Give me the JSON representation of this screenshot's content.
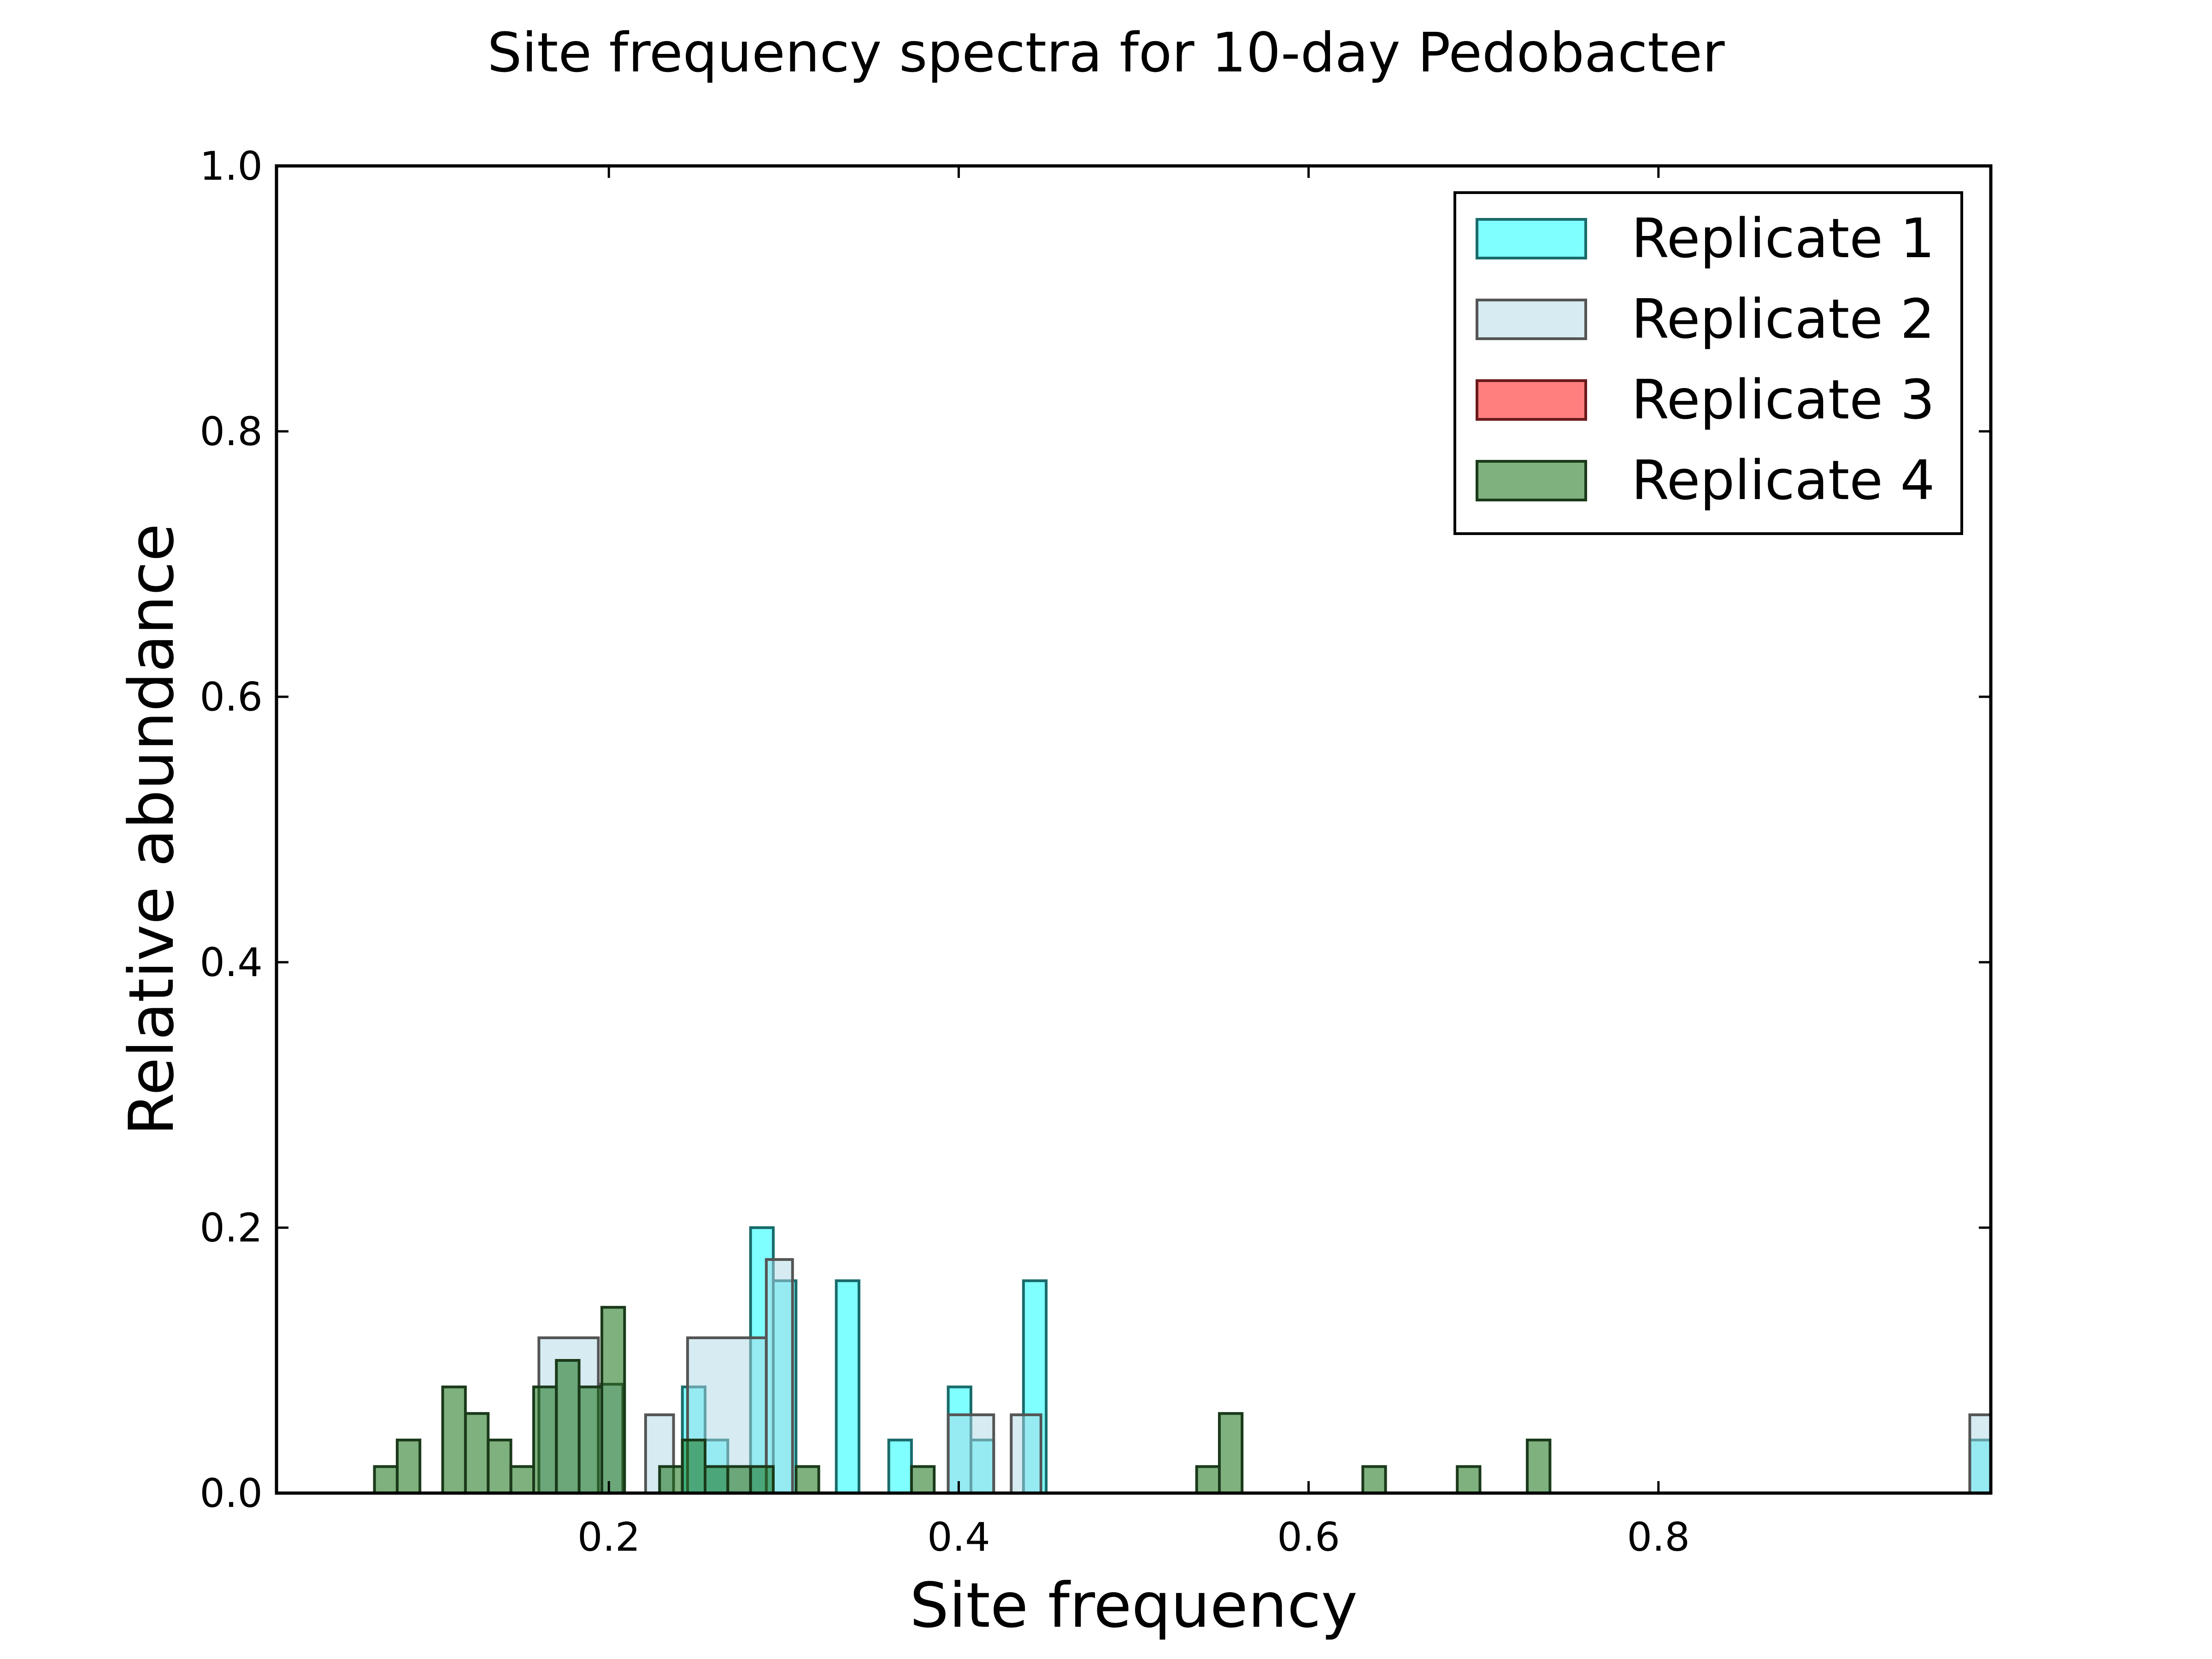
{
  "chart_data": {
    "type": "bar",
    "subtype": "histogram-step-overlay",
    "title": "Site frequency spectra for 10-day Pedobacter",
    "xlabel": "Site frequency",
    "ylabel": "Relative abundance",
    "xlim": [
      0.01,
      0.99
    ],
    "ylim": [
      0.0,
      1.0
    ],
    "xticks": [
      0.2,
      0.4,
      0.6,
      0.8
    ],
    "xtick_labels": [
      "0.2",
      "0.4",
      "0.6",
      "0.8"
    ],
    "yticks": [
      0.0,
      0.2,
      0.4,
      0.6,
      0.8,
      1.0
    ],
    "ytick_labels": [
      "0.0",
      "0.2",
      "0.4",
      "0.6",
      "0.8",
      "1.0"
    ],
    "grid": false,
    "legend_position": "top-right",
    "bin_width": 0.013,
    "series": [
      {
        "name": "Replicate 1",
        "color": "#00ffff",
        "edge_color": "#1a6b6b",
        "opacity": 0.5,
        "bins": [
          {
            "x0": 0.242,
            "x1": 0.255,
            "y": 0.08
          },
          {
            "x0": 0.255,
            "x1": 0.268,
            "y": 0.04
          },
          {
            "x0": 0.281,
            "x1": 0.294,
            "y": 0.2
          },
          {
            "x0": 0.294,
            "x1": 0.307,
            "y": 0.16
          },
          {
            "x0": 0.33,
            "x1": 0.343,
            "y": 0.16
          },
          {
            "x0": 0.36,
            "x1": 0.373,
            "y": 0.04
          },
          {
            "x0": 0.394,
            "x1": 0.407,
            "y": 0.08
          },
          {
            "x0": 0.407,
            "x1": 0.42,
            "y": 0.04
          },
          {
            "x0": 0.437,
            "x1": 0.45,
            "y": 0.16
          },
          {
            "x0": 0.978,
            "x1": 0.99,
            "y": 0.04
          }
        ]
      },
      {
        "name": "Replicate 2",
        "color": "#add8e6",
        "edge_color": "#555555",
        "opacity": 0.5,
        "bins": [
          {
            "x0": 0.16,
            "x1": 0.194,
            "y": 0.117
          },
          {
            "x0": 0.194,
            "x1": 0.208,
            "y": 0.082
          },
          {
            "x0": 0.221,
            "x1": 0.237,
            "y": 0.059
          },
          {
            "x0": 0.245,
            "x1": 0.29,
            "y": 0.117
          },
          {
            "x0": 0.29,
            "x1": 0.305,
            "y": 0.176
          },
          {
            "x0": 0.394,
            "x1": 0.42,
            "y": 0.059
          },
          {
            "x0": 0.43,
            "x1": 0.447,
            "y": 0.059
          },
          {
            "x0": 0.978,
            "x1": 0.99,
            "y": 0.059
          }
        ]
      },
      {
        "name": "Replicate 3",
        "color": "#ff0000",
        "edge_color": "#6b1a1a",
        "opacity": 0.5,
        "bins": []
      },
      {
        "name": "Replicate 4",
        "color": "#006400",
        "edge_color": "#1a3a1a",
        "opacity": 0.5,
        "bins": [
          {
            "x0": 0.066,
            "x1": 0.079,
            "y": 0.02
          },
          {
            "x0": 0.079,
            "x1": 0.092,
            "y": 0.04
          },
          {
            "x0": 0.105,
            "x1": 0.118,
            "y": 0.08
          },
          {
            "x0": 0.118,
            "x1": 0.131,
            "y": 0.06
          },
          {
            "x0": 0.131,
            "x1": 0.144,
            "y": 0.04
          },
          {
            "x0": 0.144,
            "x1": 0.157,
            "y": 0.02
          },
          {
            "x0": 0.157,
            "x1": 0.17,
            "y": 0.08
          },
          {
            "x0": 0.17,
            "x1": 0.183,
            "y": 0.1
          },
          {
            "x0": 0.183,
            "x1": 0.196,
            "y": 0.08
          },
          {
            "x0": 0.196,
            "x1": 0.209,
            "y": 0.14
          },
          {
            "x0": 0.229,
            "x1": 0.242,
            "y": 0.02
          },
          {
            "x0": 0.242,
            "x1": 0.255,
            "y": 0.04
          },
          {
            "x0": 0.255,
            "x1": 0.268,
            "y": 0.02
          },
          {
            "x0": 0.268,
            "x1": 0.281,
            "y": 0.02
          },
          {
            "x0": 0.281,
            "x1": 0.294,
            "y": 0.02
          },
          {
            "x0": 0.307,
            "x1": 0.32,
            "y": 0.02
          },
          {
            "x0": 0.373,
            "x1": 0.386,
            "y": 0.02
          },
          {
            "x0": 0.536,
            "x1": 0.549,
            "y": 0.02
          },
          {
            "x0": 0.549,
            "x1": 0.562,
            "y": 0.06
          },
          {
            "x0": 0.631,
            "x1": 0.644,
            "y": 0.02
          },
          {
            "x0": 0.685,
            "x1": 0.698,
            "y": 0.02
          },
          {
            "x0": 0.725,
            "x1": 0.738,
            "y": 0.04
          }
        ]
      }
    ]
  }
}
